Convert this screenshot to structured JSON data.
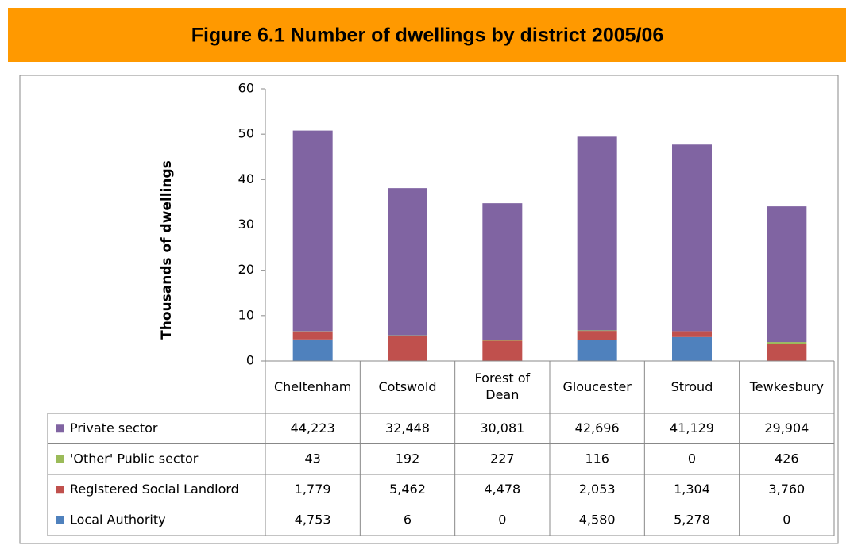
{
  "chart_data": {
    "type": "stacked_bar",
    "title": "Figure 6.1 Number of dwellings by district 2005/06",
    "y_label": "Thousands of dwellings",
    "categories": [
      "Cheltenham",
      "Cotswold",
      "Forest of Dean",
      "Gloucester",
      "Stroud",
      "Tewkesbury"
    ],
    "series": [
      {
        "name": "Local Authority",
        "color": "#4f81bd",
        "values": [
          4.753,
          0.006,
          0,
          4.58,
          5.278,
          0
        ],
        "value_labels": [
          "4,753",
          "6",
          "0",
          "4,580",
          "5,278",
          "0"
        ]
      },
      {
        "name": "Registered Social Landlord",
        "color": "#c0504d",
        "values": [
          1.779,
          5.462,
          4.478,
          2.053,
          1.304,
          3.76
        ],
        "value_labels": [
          "1,779",
          "5,462",
          "4,478",
          "2,053",
          "1,304",
          "3,760"
        ]
      },
      {
        "name": "'Other' Public sector",
        "color": "#9bbb59",
        "values": [
          0.043,
          0.192,
          0.227,
          0.116,
          0,
          0.426
        ],
        "value_labels": [
          "43",
          "192",
          "227",
          "116",
          "0",
          "426"
        ]
      },
      {
        "name": "Private sector",
        "color": "#8064a2",
        "values": [
          44.223,
          32.448,
          30.081,
          42.696,
          41.129,
          29.904
        ],
        "value_labels": [
          "44,223",
          "32,448",
          "30,081",
          "42,696",
          "41,129",
          "29,904"
        ]
      }
    ],
    "ylim": [
      0,
      60
    ],
    "yticks": [
      0,
      10,
      20,
      30,
      40,
      50,
      60
    ],
    "grid": false
  }
}
